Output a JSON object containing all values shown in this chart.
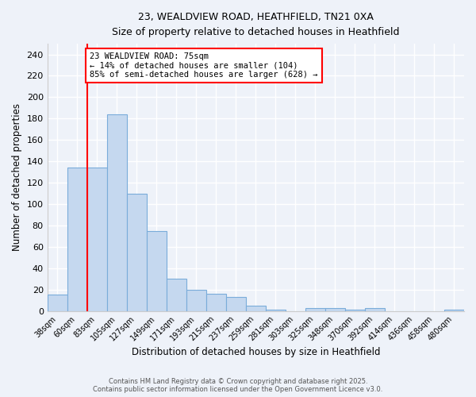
{
  "title_line1": "23, WEALDVIEW ROAD, HEATHFIELD, TN21 0XA",
  "title_line2": "Size of property relative to detached houses in Heathfield",
  "xlabel": "Distribution of detached houses by size in Heathfield",
  "ylabel": "Number of detached properties",
  "footnote1": "Contains HM Land Registry data © Crown copyright and database right 2025.",
  "footnote2": "Contains public sector information licensed under the Open Government Licence v3.0.",
  "annotation_line1": "23 WEALDVIEW ROAD: 75sqm",
  "annotation_line2": "← 14% of detached houses are smaller (104)",
  "annotation_line3": "85% of semi-detached houses are larger (628) →",
  "bar_labels": [
    "38sqm",
    "60sqm",
    "83sqm",
    "105sqm",
    "127sqm",
    "149sqm",
    "171sqm",
    "193sqm",
    "215sqm",
    "237sqm",
    "259sqm",
    "281sqm",
    "303sqm",
    "325sqm",
    "348sqm",
    "370sqm",
    "392sqm",
    "414sqm",
    "436sqm",
    "458sqm",
    "480sqm"
  ],
  "bar_values": [
    15,
    134,
    134,
    184,
    110,
    75,
    30,
    20,
    16,
    13,
    5,
    1,
    0,
    3,
    3,
    1,
    3,
    0,
    0,
    0,
    1
  ],
  "bar_color": "#c5d8ef",
  "bar_edge_color": "#7aacda",
  "background_color": "#eef2f9",
  "grid_color": "#ffffff",
  "red_line_x": 1.5,
  "ylim": [
    0,
    250
  ],
  "yticks": [
    0,
    20,
    40,
    60,
    80,
    100,
    120,
    140,
    160,
    180,
    200,
    220,
    240
  ]
}
